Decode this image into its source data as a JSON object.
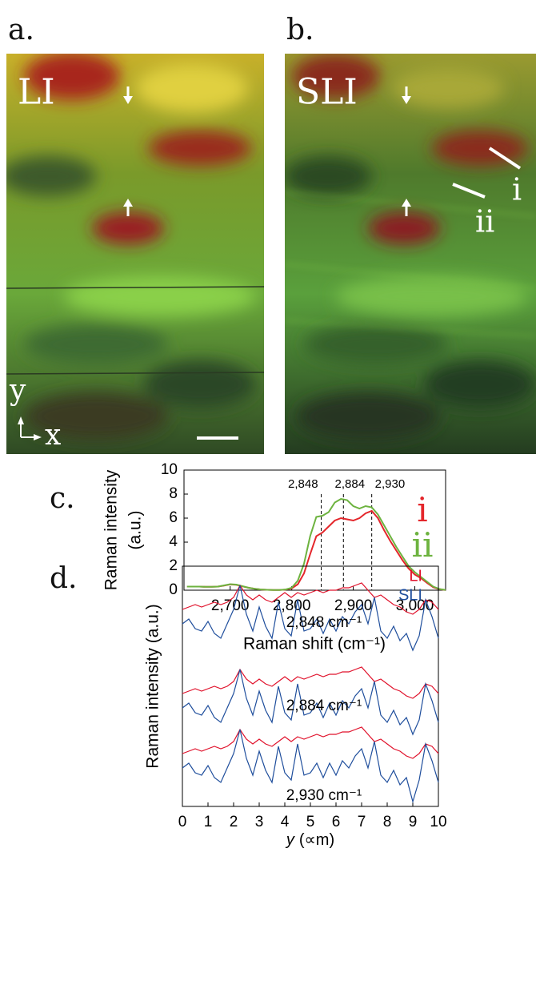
{
  "figure": {
    "panel_labels": [
      "a.",
      "b.",
      "c.",
      "d."
    ],
    "image_labels": {
      "a": "LI",
      "b": "SLI",
      "i": "i",
      "ii": "ii",
      "y": "y",
      "x": "x"
    }
  },
  "chart_data": [
    {
      "type": "line",
      "xlabel": "Raman shift (cm⁻¹)",
      "ylabel": [
        "Raman intensity",
        "(a.u.)"
      ],
      "x": [
        2630,
        2640,
        2650,
        2660,
        2670,
        2680,
        2690,
        2700,
        2710,
        2720,
        2730,
        2740,
        2750,
        2760,
        2770,
        2780,
        2790,
        2800,
        2810,
        2820,
        2830,
        2840,
        2850,
        2860,
        2870,
        2880,
        2890,
        2900,
        2910,
        2920,
        2930,
        2940,
        2950,
        2960,
        2970,
        2980,
        2990,
        3000,
        3010,
        3020,
        3030,
        3040,
        3050
      ],
      "series": [
        {
          "name": "i",
          "color": "#e4262b",
          "values": [
            0.3,
            0.3,
            0.3,
            0.28,
            0.28,
            0.3,
            0.38,
            0.48,
            0.45,
            0.32,
            0.2,
            0.12,
            0.06,
            0.03,
            0.02,
            0.02,
            0.05,
            0.15,
            0.5,
            1.4,
            3.0,
            4.5,
            4.8,
            5.3,
            5.8,
            6.0,
            5.9,
            5.8,
            6.0,
            6.4,
            6.6,
            6.0,
            5.0,
            4.1,
            3.3,
            2.5,
            1.8,
            1.3,
            1.0,
            0.6,
            0.25,
            0.08,
            0.02
          ]
        },
        {
          "name": "ii",
          "color": "#6db33f",
          "values": [
            0.3,
            0.3,
            0.3,
            0.28,
            0.28,
            0.3,
            0.4,
            0.5,
            0.47,
            0.33,
            0.2,
            0.12,
            0.06,
            0.03,
            0.02,
            0.02,
            0.06,
            0.2,
            0.8,
            2.2,
            4.5,
            6.1,
            6.2,
            6.5,
            7.3,
            7.6,
            7.5,
            7.0,
            6.8,
            7.0,
            6.9,
            6.3,
            5.4,
            4.5,
            3.6,
            2.8,
            2.0,
            1.5,
            1.1,
            0.7,
            0.3,
            0.1,
            0.02
          ]
        }
      ],
      "markers": [
        {
          "value": 2848,
          "label": "2,848"
        },
        {
          "value": 2884,
          "label": "2,884"
        },
        {
          "value": 2930,
          "label": "2,930"
        }
      ],
      "xlim": [
        2625,
        3050
      ],
      "ylim": [
        0,
        10
      ],
      "xticks": [
        {
          "value": 2700,
          "label": "2,700"
        },
        {
          "value": 2800,
          "label": "2,800"
        },
        {
          "value": 2900,
          "label": "2,900"
        },
        {
          "value": 3000,
          "label": "3,000"
        }
      ],
      "yticks": [
        0,
        2,
        4,
        6,
        8,
        10
      ]
    },
    {
      "type": "line",
      "xlabel_var": "y",
      "xlabel": "(∝m)",
      "ylabel": "Raman intensity (a.u.)",
      "x": [
        0,
        0.25,
        0.5,
        0.75,
        1,
        1.25,
        1.5,
        1.75,
        2,
        2.25,
        2.5,
        2.75,
        3,
        3.25,
        3.5,
        3.75,
        4,
        4.25,
        4.5,
        4.75,
        5,
        5.25,
        5.5,
        5.75,
        6,
        6.25,
        6.5,
        6.75,
        7,
        7.25,
        7.5,
        7.75,
        8,
        8.25,
        8.5,
        8.75,
        9,
        9.25,
        9.5,
        9.75,
        10
      ],
      "trace_labels": [
        "2,848 cm⁻¹",
        "2,884 cm⁻¹",
        "2,930 cm⁻¹"
      ],
      "series": [
        {
          "name": "LI",
          "color": "#e0102a",
          "traces": [
            [
              8.2,
              8.3,
              8.4,
              8.3,
              8.4,
              8.5,
              8.4,
              8.5,
              8.7,
              9.2,
              8.8,
              8.6,
              8.8,
              8.6,
              8.5,
              8.7,
              8.9,
              8.7,
              8.9,
              8.8,
              8.9,
              9.0,
              8.9,
              9.0,
              9.0,
              9.1,
              9.1,
              9.2,
              9.3,
              9.0,
              8.7,
              8.8,
              8.6,
              8.4,
              8.3,
              8.1,
              8.0,
              8.2,
              8.6,
              8.5,
              8.2
            ],
            [
              4.7,
              4.8,
              4.9,
              4.8,
              4.9,
              5.0,
              4.9,
              5.0,
              5.2,
              5.7,
              5.3,
              5.1,
              5.3,
              5.1,
              5.0,
              5.2,
              5.4,
              5.2,
              5.4,
              5.3,
              5.4,
              5.5,
              5.4,
              5.5,
              5.5,
              5.6,
              5.6,
              5.7,
              5.8,
              5.5,
              5.2,
              5.3,
              5.1,
              4.9,
              4.8,
              4.6,
              4.5,
              4.7,
              5.1,
              5.0,
              4.7
            ],
            [
              2.2,
              2.3,
              2.4,
              2.3,
              2.4,
              2.5,
              2.4,
              2.5,
              2.7,
              3.2,
              2.8,
              2.6,
              2.8,
              2.6,
              2.5,
              2.7,
              2.9,
              2.7,
              2.9,
              2.8,
              2.9,
              3.0,
              2.9,
              3.0,
              3.0,
              3.1,
              3.1,
              3.2,
              3.3,
              3.0,
              2.7,
              2.8,
              2.6,
              2.4,
              2.3,
              2.1,
              2.0,
              2.2,
              2.6,
              2.5,
              2.2
            ]
          ]
        },
        {
          "name": "SLI",
          "color": "#1f4e9c",
          "traces": [
            [
              7.6,
              7.8,
              7.4,
              7.3,
              7.7,
              7.2,
              7.0,
              7.6,
              8.2,
              9.2,
              8.0,
              7.3,
              8.3,
              7.5,
              7.0,
              8.5,
              7.4,
              7.1,
              8.6,
              7.3,
              7.4,
              7.8,
              7.2,
              7.8,
              7.3,
              7.9,
              7.6,
              8.1,
              8.4,
              7.6,
              8.7,
              7.3,
              7.0,
              7.5,
              6.9,
              7.2,
              6.5,
              7.1,
              8.6,
              7.9,
              7.0
            ],
            [
              4.1,
              4.3,
              3.9,
              3.8,
              4.2,
              3.7,
              3.5,
              4.1,
              4.7,
              5.7,
              4.5,
              3.8,
              4.8,
              4.0,
              3.5,
              5.0,
              3.9,
              3.6,
              5.1,
              3.8,
              3.9,
              4.3,
              3.7,
              4.3,
              3.8,
              4.4,
              4.1,
              4.6,
              4.9,
              4.1,
              5.2,
              3.8,
              3.5,
              4.0,
              3.4,
              3.7,
              3.0,
              3.6,
              5.1,
              4.4,
              3.5
            ],
            [
              1.6,
              1.8,
              1.4,
              1.3,
              1.7,
              1.2,
              1.0,
              1.6,
              2.2,
              3.2,
              2.0,
              1.3,
              2.3,
              1.5,
              1.0,
              2.5,
              1.4,
              1.1,
              2.6,
              1.3,
              1.4,
              1.8,
              1.2,
              1.8,
              1.3,
              1.9,
              1.6,
              2.1,
              2.4,
              1.6,
              2.7,
              1.3,
              1.0,
              1.5,
              0.9,
              1.2,
              0.2,
              1.1,
              2.6,
              1.9,
              1.0
            ]
          ]
        }
      ],
      "xlim": [
        0,
        10
      ],
      "ylim": [
        0,
        10
      ],
      "xticks": [
        0,
        1,
        2,
        3,
        4,
        5,
        6,
        7,
        8,
        9,
        10
      ]
    }
  ]
}
